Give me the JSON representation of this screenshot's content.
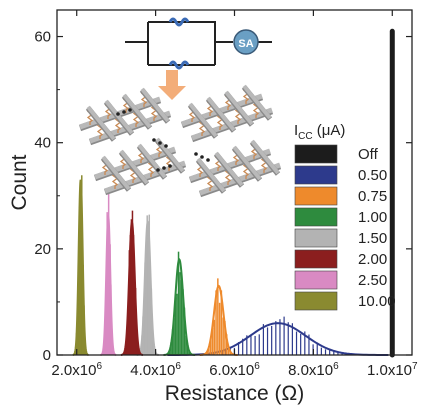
{
  "chart_data": {
    "type": "histogram",
    "xlabel": "Resistance (Ω)",
    "ylabel": "Count",
    "xlim": [
      1500000,
      10500000
    ],
    "ylim": [
      0,
      65
    ],
    "x_ticks": [
      2000000,
      4000000,
      6000000,
      8000000,
      10000000
    ],
    "x_tick_labels": [
      "2.0x10",
      "4.0x10",
      "6.0x10",
      "8.0x10",
      "1.0x10"
    ],
    "x_tick_exponents": [
      "6",
      "6",
      "6",
      "6",
      "7"
    ],
    "y_ticks": [
      0,
      20,
      40,
      60
    ],
    "y_tick_labels": [
      "0",
      "20",
      "40",
      "60"
    ],
    "legend_title_main": "I",
    "legend_title_sub": "CC",
    "legend_title_unit": " (μA)",
    "legend_placement": "right",
    "series": [
      {
        "name": "Off",
        "color": "#1c1c1c",
        "peak_x": 10000000,
        "peak_count": 61,
        "width": 60000
      },
      {
        "name": "0.50",
        "color": "#2d3a8c",
        "peak_x": 7100000,
        "peak_count": 6,
        "width": 700000
      },
      {
        "name": "0.75",
        "color": "#ee8a2c",
        "peak_x": 5600000,
        "peak_count": 13,
        "width": 120000
      },
      {
        "name": "1.00",
        "color": "#2e8b3e",
        "peak_x": 4600000,
        "peak_count": 18,
        "width": 100000
      },
      {
        "name": "1.50",
        "color": "#b3b3b3",
        "peak_x": 3800000,
        "peak_count": 25,
        "width": 70000
      },
      {
        "name": "2.00",
        "color": "#8b1e1e",
        "peak_x": 3400000,
        "peak_count": 25,
        "width": 70000
      },
      {
        "name": "2.50",
        "color": "#d98ac3",
        "peak_x": 2800000,
        "peak_count": 26,
        "width": 50000
      },
      {
        "name": "10.00",
        "color": "#8a8a30",
        "peak_x": 2100000,
        "peak_count": 33,
        "width": 50000
      }
    ],
    "inset": {
      "sa_label": "SA",
      "arrow_color": "#f2a46a",
      "wire_color": "#222222",
      "wave_color": "#3a6ab5",
      "sa_color": "#6a9fc4",
      "bar_color": "#b9b9b9",
      "resistor_color": "#c98a54"
    }
  }
}
